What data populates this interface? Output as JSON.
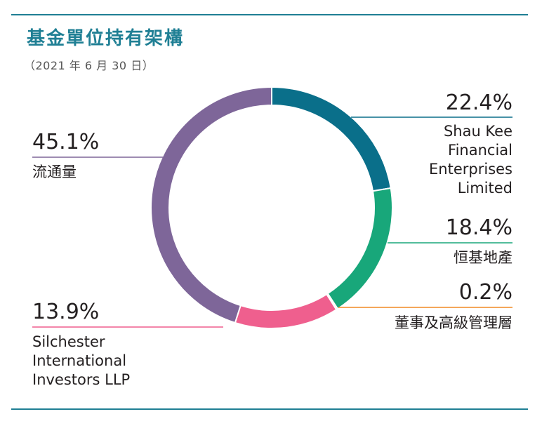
{
  "header": {
    "title": "基金單位持有架構",
    "subtitle": "（2021 年 6 月 30 日）"
  },
  "colors": {
    "rule": "#1f7f94",
    "shau_kee": "#0a6f8a",
    "henderson": "#18a77a",
    "management": "#f08a24",
    "silchester": "#ef5f8e",
    "public_float": "#7e6699"
  },
  "chart_data": {
    "type": "pie",
    "style": "donut",
    "title": "基金單位持有架構",
    "subtitle": "（2021 年 6 月 30 日）",
    "slices": [
      {
        "key": "shau_kee",
        "value": 22.4,
        "value_label": "22.4%",
        "label": "Shau Kee Financial Enterprises Limited",
        "label_lines": [
          "Shau Kee",
          "Financial",
          "Enterprises",
          "Limited"
        ],
        "color": "#0a6f8a"
      },
      {
        "key": "henderson",
        "value": 18.4,
        "value_label": "18.4%",
        "label": "恒基地產",
        "label_lines": [
          "恒基地產"
        ],
        "color": "#18a77a"
      },
      {
        "key": "management",
        "value": 0.2,
        "value_label": "0.2%",
        "label": "董事及高級管理層",
        "label_lines": [
          "董事及高級管理層"
        ],
        "color": "#f08a24"
      },
      {
        "key": "silchester",
        "value": 13.9,
        "value_label": "13.9%",
        "label": "Silchester International Investors LLP",
        "label_lines": [
          "Silchester",
          "International",
          "Investors LLP"
        ],
        "color": "#ef5f8e"
      },
      {
        "key": "public_float",
        "value": 45.1,
        "value_label": "45.1%",
        "label": "流通量",
        "label_lines": [
          "流通量"
        ],
        "color": "#7e6699"
      }
    ]
  }
}
